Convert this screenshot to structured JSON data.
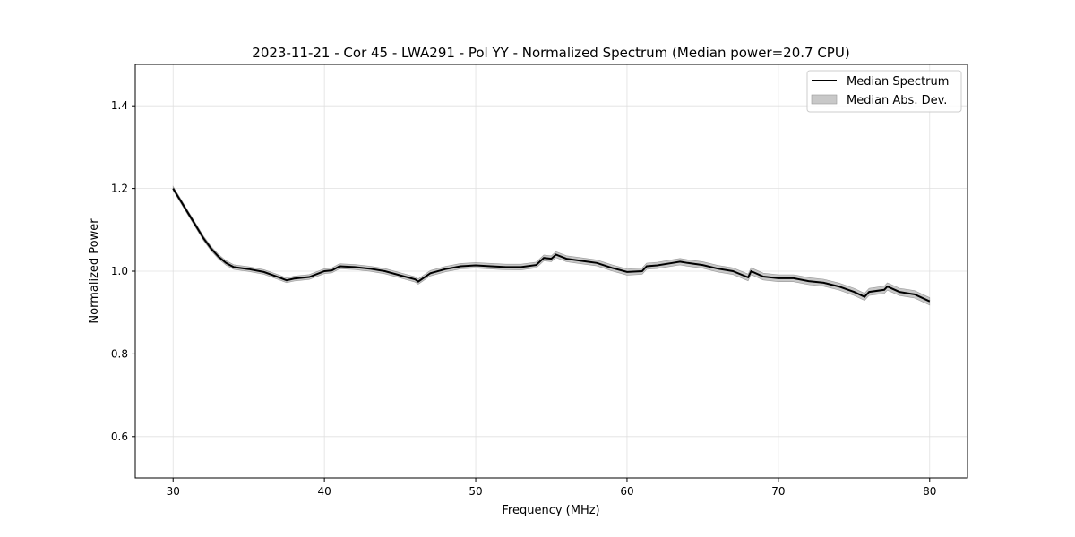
{
  "chart_data": {
    "type": "line",
    "title": "2023-11-21 - Cor 45 - LWA291 - Pol YY - Normalized Spectrum (Median power=20.7 CPU)",
    "xlabel": "Frequency (MHz)",
    "ylabel": "Normalized Power",
    "xlim": [
      27.5,
      82.5
    ],
    "ylim": [
      0.5,
      1.5
    ],
    "xticks": [
      30,
      40,
      50,
      60,
      70,
      80
    ],
    "xtick_labels": [
      "30",
      "40",
      "50",
      "60",
      "70",
      "80"
    ],
    "yticks": [
      0.6,
      0.8,
      1.0,
      1.2,
      1.4
    ],
    "ytick_labels": [
      "0.6",
      "0.8",
      "1.0",
      "1.2",
      "1.4"
    ],
    "grid": true,
    "legend_placement": "top-right",
    "legend": [
      "Median Spectrum",
      "Median Abs. Dev."
    ],
    "colors": {
      "line": "#000000",
      "band": "#c8c8c8",
      "band_edge": "#999999",
      "grid": "#e0e0e0"
    },
    "series": [
      {
        "name": "Median Spectrum",
        "x": [
          30,
          30.5,
          31,
          31.5,
          32,
          32.5,
          33,
          33.5,
          34,
          35,
          36,
          37,
          37.5,
          38,
          39,
          40,
          40.5,
          41,
          42,
          43,
          44,
          45,
          46,
          46.2,
          47,
          48,
          49,
          50,
          51,
          52,
          53,
          54,
          54.5,
          55,
          55.3,
          56,
          57,
          58,
          59,
          60,
          61,
          61.3,
          62,
          63,
          63.5,
          64,
          65,
          66,
          67,
          68,
          68.2,
          69,
          70,
          71,
          72,
          73,
          74,
          75,
          75.7,
          76,
          77,
          77.2,
          78,
          79,
          80
        ],
        "y": [
          1.2,
          1.17,
          1.14,
          1.11,
          1.08,
          1.055,
          1.035,
          1.02,
          1.01,
          1.005,
          0.998,
          0.985,
          0.978,
          0.982,
          0.986,
          1.0,
          1.002,
          1.012,
          1.01,
          1.006,
          1.0,
          0.99,
          0.98,
          0.975,
          0.995,
          1.005,
          1.012,
          1.014,
          1.012,
          1.01,
          1.01,
          1.015,
          1.032,
          1.03,
          1.04,
          1.03,
          1.025,
          1.02,
          1.008,
          0.998,
          1.0,
          1.012,
          1.014,
          1.02,
          1.023,
          1.02,
          1.015,
          1.006,
          1.0,
          0.985,
          1.0,
          0.987,
          0.983,
          0.983,
          0.976,
          0.972,
          0.963,
          0.95,
          0.938,
          0.95,
          0.955,
          0.963,
          0.95,
          0.944,
          0.927
        ]
      },
      {
        "name": "Median Abs. Dev.",
        "half_width_start": 0.005,
        "half_width_end": 0.009
      }
    ]
  }
}
